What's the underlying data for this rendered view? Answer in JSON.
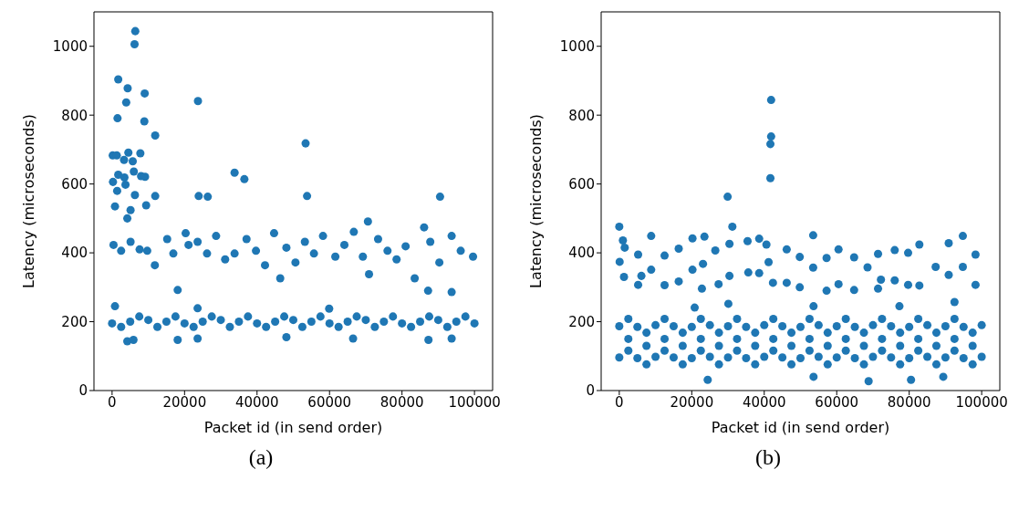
{
  "chart_data": [
    {
      "type": "scatter",
      "xlabel": "Packet id (in send order)",
      "ylabel": "Latency (microseconds)",
      "annotations": [
        "(a)"
      ],
      "marker": "circle",
      "xlim": [
        -5000,
        105000
      ],
      "xticks": [
        0,
        20000,
        40000,
        60000,
        80000,
        100000
      ],
      "ylim": [
        0,
        1100
      ],
      "yticks": [
        0,
        200,
        400,
        600,
        800,
        1000
      ],
      "series": [
        {
          "color": "#1f77b4",
          "x": [
            6400,
            6200,
            1700,
            4300,
            3900,
            9000,
            1500,
            8900,
            11900,
            23700,
            53400,
            33800,
            36500,
            53800,
            90500,
            70600,
            11900,
            23900,
            26400,
            170,
            1300,
            4500,
            3300,
            5700,
            7800,
            1700,
            3400,
            6000,
            8000,
            9100,
            250,
            1400,
            3700,
            6300,
            9400,
            800,
            5100,
            4200,
            400,
            2500,
            5100,
            7600,
            9700,
            11800,
            15200,
            16900,
            20300,
            21100,
            23600,
            26200,
            28700,
            31200,
            33800,
            37100,
            39700,
            42200,
            44700,
            46400,
            48100,
            50600,
            53200,
            55700,
            58200,
            61600,
            64100,
            66700,
            69200,
            70900,
            73400,
            76000,
            78500,
            81000,
            83500,
            86100,
            87800,
            90300,
            93700,
            96200,
            99600,
            0,
            5000,
            10000,
            15000,
            20000,
            25000,
            30000,
            35000,
            40000,
            45000,
            50000,
            55000,
            60000,
            65000,
            70000,
            75000,
            80000,
            85000,
            90000,
            95000,
            100000,
            2500,
            7500,
            12500,
            17500,
            22500,
            27500,
            32500,
            37500,
            42500,
            47500,
            52500,
            57500,
            62500,
            67500,
            72500,
            77500,
            82500,
            87500,
            92500,
            97500,
            4200,
            5900,
            18100,
            18100,
            23600,
            48100,
            66500,
            87300,
            93700,
            87200,
            93700,
            800,
            23600,
            59900
          ],
          "values": [
            1044,
            1006,
            904,
            878,
            837,
            863,
            791,
            782,
            741,
            841,
            718,
            633,
            614,
            565,
            563,
            491,
            565,
            565,
            563,
            683,
            683,
            691,
            670,
            666,
            689,
            627,
            619,
            636,
            623,
            621,
            606,
            580,
            598,
            568,
            538,
            535,
            524,
            500,
            423,
            406,
            432,
            410,
            406,
            364,
            440,
            398,
            457,
            423,
            432,
            398,
            449,
            381,
            398,
            440,
            406,
            364,
            457,
            326,
            415,
            372,
            432,
            398,
            449,
            389,
            423,
            461,
            389,
            338,
            440,
            406,
            381,
            419,
            326,
            474,
            432,
            372,
            449,
            406,
            389,
            195,
            200,
            205,
            200,
            195,
            200,
            205,
            200,
            195,
            200,
            205,
            200,
            195,
            200,
            205,
            200,
            195,
            200,
            205,
            200,
            195,
            185,
            215,
            185,
            215,
            185,
            215,
            185,
            215,
            185,
            215,
            185,
            215,
            185,
            215,
            185,
            215,
            185,
            215,
            185,
            215,
            143,
            147,
            292,
            147,
            151,
            155,
            151,
            147,
            151,
            290,
            286,
            245,
            239,
            238
          ]
        }
      ]
    },
    {
      "type": "scatter",
      "xlabel": "Packet id (in send order)",
      "ylabel": "Latency (microseconds)",
      "annotations": [
        "(b)"
      ],
      "marker": "circle",
      "xlim": [
        -5000,
        105000
      ],
      "xticks": [
        0,
        20000,
        40000,
        60000,
        80000,
        100000
      ],
      "ylim": [
        0,
        1100
      ],
      "yticks": [
        0,
        200,
        400,
        600,
        800,
        1000
      ],
      "series": [
        {
          "color": "#1f77b4",
          "x": [
            41900,
            41900,
            41700,
            41700,
            29900,
            31200,
            0,
            1000,
            1500,
            100,
            1300,
            5200,
            6100,
            5200,
            8800,
            8800,
            12500,
            12500,
            16400,
            16400,
            20200,
            20200,
            23500,
            23100,
            22800,
            26500,
            27400,
            30400,
            30400,
            35400,
            35600,
            38600,
            38600,
            40600,
            41200,
            42400,
            46200,
            46200,
            49800,
            49800,
            53500,
            53500,
            57200,
            57200,
            60500,
            60500,
            64800,
            64800,
            68500,
            71400,
            71400,
            72200,
            76000,
            76000,
            79700,
            79700,
            82800,
            82800,
            87300,
            90900,
            90900,
            94800,
            94800,
            98300,
            98300,
            92500,
            77300,
            53600,
            20800,
            30100,
            0,
            5000,
            10000,
            15000,
            20000,
            25000,
            30000,
            35000,
            40000,
            45000,
            50000,
            55000,
            60000,
            65000,
            70000,
            75000,
            80000,
            85000,
            90000,
            95000,
            100000,
            0,
            5000,
            10000,
            15000,
            20000,
            25000,
            30000,
            35000,
            40000,
            45000,
            50000,
            55000,
            60000,
            65000,
            70000,
            75000,
            80000,
            85000,
            90000,
            95000,
            100000,
            2500,
            7500,
            12500,
            17500,
            22500,
            27500,
            32500,
            37500,
            42500,
            47500,
            52500,
            57500,
            62500,
            67500,
            72500,
            77500,
            82500,
            87500,
            92500,
            97500,
            2500,
            7500,
            12500,
            17500,
            22500,
            27500,
            32500,
            37500,
            42500,
            47500,
            52500,
            57500,
            62500,
            67500,
            72500,
            77500,
            82500,
            87500,
            92500,
            97500,
            2500,
            7500,
            12500,
            17500,
            22500,
            27500,
            32500,
            37500,
            42500,
            47500,
            52500,
            57500,
            62500,
            67500,
            72500,
            77500,
            82500,
            87500,
            92500,
            97500,
            24400,
            68800,
            53600,
            89400,
            80500
          ],
          "values": [
            844,
            738,
            716,
            617,
            563,
            476,
            476,
            436,
            415,
            374,
            330,
            395,
            333,
            307,
            449,
            351,
            392,
            306,
            412,
            317,
            442,
            351,
            447,
            368,
            296,
            407,
            309,
            426,
            333,
            434,
            343,
            441,
            341,
            424,
            373,
            313,
            410,
            313,
            388,
            300,
            451,
            357,
            385,
            290,
            410,
            309,
            387,
            292,
            358,
            397,
            296,
            322,
            408,
            320,
            400,
            307,
            424,
            305,
            359,
            428,
            336,
            449,
            359,
            395,
            307,
            257,
            245,
            245,
            241,
            252,
            187,
            185,
            190,
            187,
            185,
            190,
            187,
            185,
            190,
            187,
            185,
            190,
            187,
            185,
            190,
            187,
            185,
            190,
            187,
            185,
            190,
            96,
            94,
            98,
            96,
            94,
            98,
            96,
            94,
            98,
            96,
            94,
            98,
            96,
            94,
            98,
            96,
            94,
            98,
            96,
            94,
            98,
            150,
            130,
            150,
            130,
            150,
            130,
            150,
            130,
            150,
            130,
            150,
            130,
            150,
            130,
            150,
            130,
            150,
            130,
            150,
            130,
            208,
            168,
            208,
            168,
            208,
            168,
            208,
            168,
            208,
            168,
            208,
            168,
            208,
            168,
            208,
            168,
            208,
            168,
            208,
            168,
            116,
            76,
            116,
            76,
            116,
            76,
            116,
            76,
            116,
            76,
            116,
            76,
            116,
            76,
            116,
            76,
            116,
            76,
            116,
            76,
            31,
            27,
            40,
            40,
            31
          ]
        }
      ]
    }
  ]
}
